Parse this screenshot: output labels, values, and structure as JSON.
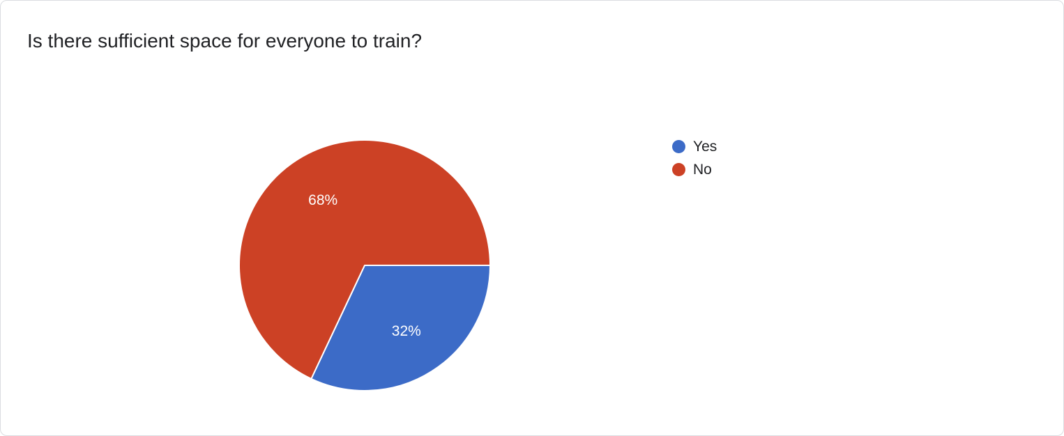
{
  "question": {
    "title": "Is there sufficient space for everyone to train?"
  },
  "chart_data": {
    "type": "pie",
    "title": "Is there sufficient space for everyone to train?",
    "categories": [
      "Yes",
      "No"
    ],
    "values": [
      32,
      68
    ],
    "data_labels": [
      "32%",
      "68%"
    ],
    "colors": [
      "#3c6bc7",
      "#cc4125"
    ],
    "start_angle_deg": 90,
    "legend_position": "right",
    "slice_border_color": "#ffffff",
    "label_color": "#ffffff"
  },
  "legend": {
    "items": [
      {
        "label": "Yes",
        "color": "#3c6bc7"
      },
      {
        "label": "No",
        "color": "#cc4125"
      }
    ]
  }
}
